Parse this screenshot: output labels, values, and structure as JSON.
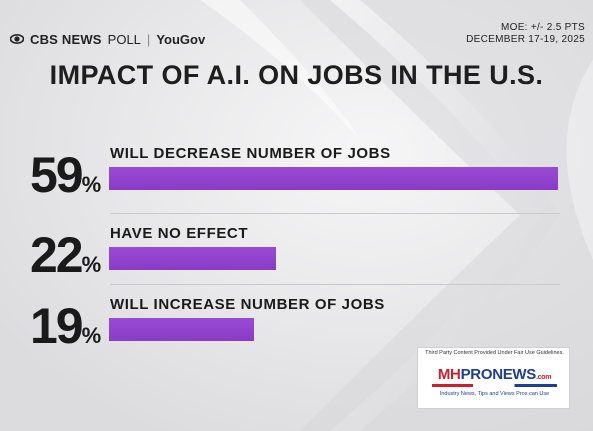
{
  "header": {
    "brand": "CBS NEWS",
    "poll": "POLL",
    "separator": "|",
    "partner": "YouGov",
    "moe": "MOE: +/- 2.5 PTS",
    "dates": "DECEMBER 17-19, 2025"
  },
  "colors": {
    "bar": "#9a4bd6",
    "text": "#1a1a1a",
    "background": "#e9e9ea"
  },
  "chart_data": {
    "type": "bar",
    "orientation": "horizontal",
    "title": "IMPACT OF A.I. ON JOBS IN THE U.S.",
    "categories": [
      "WILL DECREASE NUMBER OF JOBS",
      "HAVE NO EFFECT",
      "WILL INCREASE NUMBER OF JOBS"
    ],
    "values": [
      59,
      22,
      19
    ],
    "value_labels": [
      "59",
      "22",
      "19"
    ],
    "unit": "%",
    "xlim": [
      0,
      59
    ],
    "grid": false
  },
  "watermark": {
    "caption": "Third Party Content Provided Under Fair Use Guidelines.",
    "logo_mh": "MH",
    "logo_pro": "PRONEWS",
    "logo_com": ".com",
    "tagline": "Industry News, Tips and Views Pros can Use"
  }
}
